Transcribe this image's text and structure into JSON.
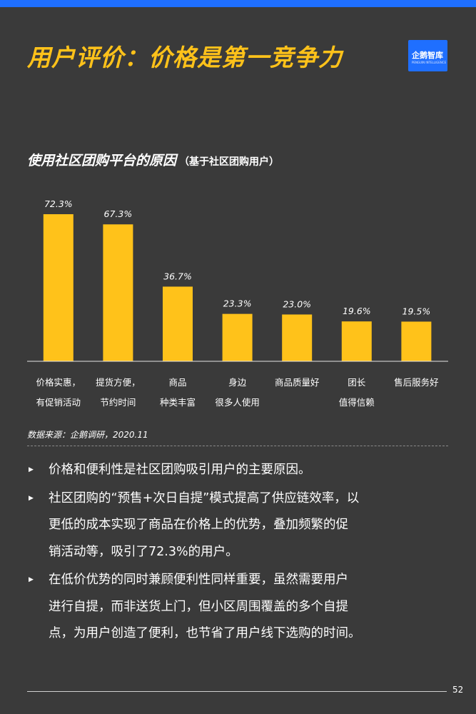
{
  "page": {
    "title": "用户评价：价格是第一竞争力",
    "logo_text": "企鹅智库",
    "logo_subtext": "PENGUIN INTELLIGENCE",
    "page_number": "52",
    "accent_color": "#ffc21a",
    "bar_color": "#ffc21a",
    "brand_blue": "#1f6fff"
  },
  "chart_title": {
    "main": "使用社区团购平台的原因",
    "sub": "（基于社区团购用户）"
  },
  "chart_data": {
    "type": "bar",
    "title": "使用社区团购平台的原因（基于社区团购用户）",
    "categories": [
      [
        "价格实惠，",
        "有促销活动"
      ],
      [
        "提货方便，",
        "节约时间"
      ],
      [
        "商品",
        "种类丰富"
      ],
      [
        "身边",
        "很多人使用"
      ],
      [
        "商品质量好"
      ],
      [
        "团长",
        "值得信赖"
      ],
      [
        "售后服务好"
      ]
    ],
    "values": [
      72.3,
      67.3,
      36.7,
      23.3,
      23.0,
      19.6,
      19.5
    ],
    "value_labels": [
      "72.3%",
      "67.3%",
      "36.7%",
      "23.3%",
      "23.0%",
      "19.6%",
      "19.5%"
    ],
    "ylim": [
      0,
      75
    ],
    "grid": false,
    "legend": "none"
  },
  "source": "数据来源：企鹅调研，2020.11",
  "bullets": [
    [
      "价格和便利性是社区团购吸引用户的主要原因。"
    ],
    [
      "社区团购的“预售+次日自提”模式提高了供应链效率，以",
      "更低的成本实现了商品在价格上的优势，叠加频繁的促",
      "销活动等，吸引了72.3%的用户。"
    ],
    [
      "在低价优势的同时兼顾便利性同样重要，虽然需要用户",
      "进行自提，而非送货上门，但小区周围覆盖的多个自提",
      "点，为用户创造了便利，也节省了用户线下选购的时间。"
    ]
  ]
}
